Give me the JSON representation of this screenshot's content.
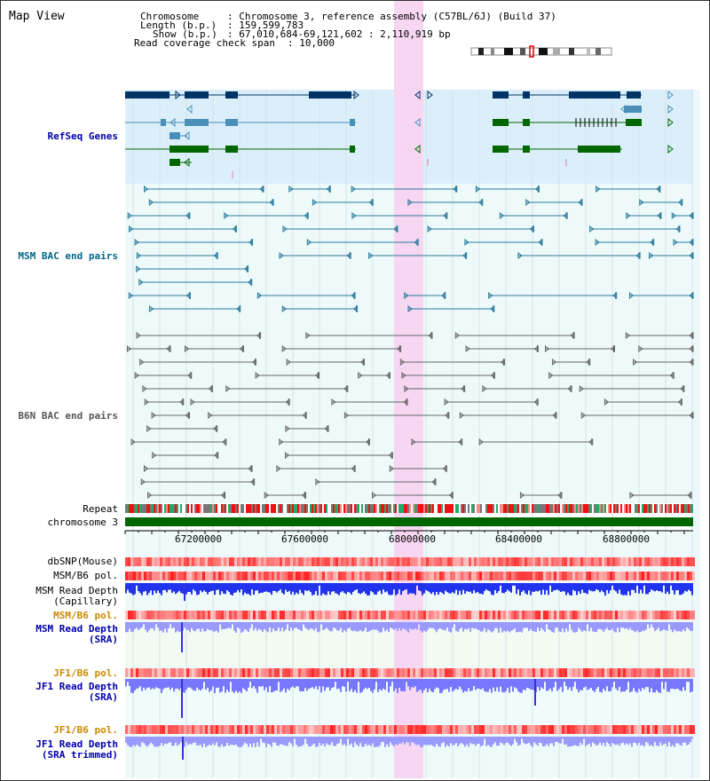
{
  "title": "Map View",
  "header": {
    "chromosome_label": "Chromosome",
    "chromosome_value": ": Chromosome 3, reference assembly (C57BL/6J) (Build 37)",
    "length_label": "Length (b.p.)",
    "length_value": ": 159,599,783",
    "show_label": "Show (b.p.)",
    "show_value": ": 67,010,684-69,121,602 : 2,110,919 bp",
    "coverage_label": "Read coverage check span",
    "coverage_value": ": 10,000"
  },
  "tracks": {
    "refseq": "RefSeq Genes",
    "msm_bac": "MSM BAC end pairs",
    "b6n_bac": "B6N BAC end pairs",
    "repeat": "Repeat",
    "chromosome": "chromosome 3",
    "dbsnp": "dbSNP(Mouse)",
    "msm_b6_pol_1": "MSM/B6 pol.",
    "msm_read_depth_cap_1": "MSM Read Depth",
    "msm_read_depth_cap_2": "(Capillary)",
    "msm_b6_pol_2": "MSM/B6 pol.",
    "msm_read_depth_sra_1": "MSM Read Depth",
    "msm_read_depth_sra_2": "(SRA)",
    "jf1_b6_pol_1": "JF1/B6 pol.",
    "jf1_read_depth_1": "JF1 Read Depth",
    "jf1_read_depth_2": "(SRA)",
    "jf1_b6_pol_2": "JF1/B6 pol.",
    "jf1_read_depth_trim_1": "JF1 Read Depth",
    "jf1_read_depth_trim_2": "(SRA trimmed)"
  },
  "axis": {
    "ticks": [
      "67200000",
      "67600000",
      "68000000",
      "68400000",
      "68800000"
    ]
  },
  "colors": {
    "refseq_bg": "#dbeffa",
    "bac_bg": "#f0fbfb",
    "gene_dark": "#003366",
    "gene_mid": "#4b8fb8",
    "gene_green": "#006600",
    "msm_line": "#2a7a9a",
    "b6n_line": "#666666",
    "highlight": "#f7d6f2",
    "label_blue": "#0000aa",
    "label_teal": "#006688",
    "label_orange": "#cc8800"
  }
}
